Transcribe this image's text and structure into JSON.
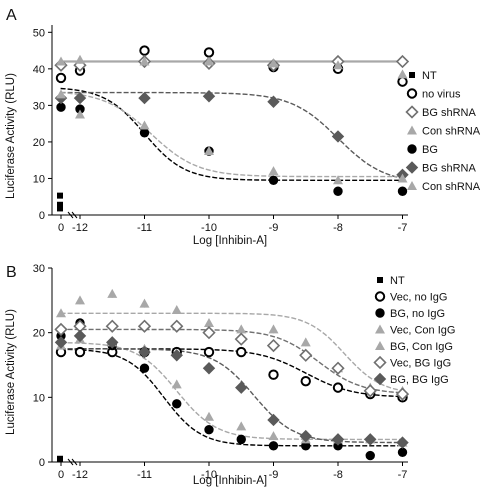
{
  "chart_data": [
    {
      "panel": "A",
      "type": "scatter",
      "xlabel": "Log [Inhibin-A]",
      "ylabel": "Luciferase Activity (RLU)",
      "ylim": [
        0,
        52
      ],
      "yticks": [
        0,
        10,
        20,
        30,
        40,
        50
      ],
      "xticks": [
        "0",
        "-12",
        "-11",
        "-10",
        "-9",
        "-8",
        "-7"
      ],
      "x": [
        -12,
        -11,
        -10,
        -9,
        -8,
        -7
      ],
      "series": [
        {
          "name": "NT",
          "marker": "square",
          "color": "#000000",
          "values_at_zero": [
            5.3,
            2.8,
            1.8
          ]
        },
        {
          "name": "no virus",
          "marker": "circle-open",
          "color": "#000000",
          "zero": 37.5,
          "values": [
            39.5,
            45.0,
            44.5,
            40.5,
            40.0,
            36.5
          ],
          "fit": "flat",
          "fit_level": 42
        },
        {
          "name": "BG shRNA",
          "marker": "diamond-open",
          "color": "#707070",
          "zero": 41.0,
          "values": [
            41.0,
            42.0,
            41.5,
            41.0,
            42.0,
            42.0
          ],
          "fit": "flat",
          "fit_level": 42
        },
        {
          "name": "Con shRNA",
          "marker": "triangle",
          "color": "#a8a8a8",
          "zero": 42.0,
          "values": [
            42.5,
            42.0,
            42.0,
            41.5,
            41.0,
            38.5
          ],
          "fit": "flat",
          "fit_level": 42
        },
        {
          "name": "BG",
          "marker": "circle",
          "color": "#000000",
          "zero": 29.5,
          "values": [
            29.0,
            22.5,
            17.5,
            9.5,
            6.5,
            6.5
          ],
          "fit": "sigmoid",
          "fit_top": 35,
          "fit_bottom": 9.5,
          "fit_ec50": -11.0,
          "fit_hill": 1.4
        },
        {
          "name": "BG shRNA",
          "marker": "diamond",
          "color": "#5a5a5a",
          "zero": 32.0,
          "values": [
            32.0,
            32.0,
            32.5,
            31.0,
            21.5,
            11.0
          ],
          "fit": "sigmoid",
          "fit_top": 33.5,
          "fit_bottom": 8.5,
          "fit_ec50": -8.0,
          "fit_hill": 1.2
        },
        {
          "name": "Con shRNA",
          "marker": "triangle",
          "color": "#a8a8a8",
          "zero": 33.0,
          "values": [
            27.5,
            24.5,
            17.5,
            12.0,
            9.5,
            10.0
          ],
          "fit": "sigmoid",
          "fit_top": 34,
          "fit_bottom": 10.5,
          "fit_ec50": -10.9,
          "fit_hill": 1.2
        }
      ]
    },
    {
      "panel": "B",
      "type": "scatter",
      "xlabel": "Log [Inhibin-A]",
      "ylabel": "Luciferase Activity (RLU)",
      "ylim": [
        0,
        30
      ],
      "yticks": [
        0,
        10,
        20,
        30
      ],
      "xticks": [
        "0",
        "-12",
        "-11",
        "-10",
        "-9",
        "-8",
        "-7"
      ],
      "x": [
        -12,
        -11.5,
        -11,
        -10.5,
        -10,
        -9.5,
        -9,
        -8.5,
        -8,
        -7.5,
        -7
      ],
      "series": [
        {
          "name": "NT",
          "marker": "square",
          "color": "#000000",
          "values_at_zero": [
            0.5
          ]
        },
        {
          "name": "Vec, no IgG",
          "marker": "circle-open",
          "color": "#000000",
          "zero": 17.0,
          "values": [
            17.0,
            17.0,
            17.0,
            17.0,
            17.0,
            17.0,
            13.5,
            12.5,
            11.5,
            10.5,
            10.0
          ],
          "fit": "sigmoid",
          "fit_top": 17.5,
          "fit_bottom": 10.0,
          "fit_ec50": -8.5,
          "fit_hill": 1.2
        },
        {
          "name": "BG, no IgG",
          "marker": "circle",
          "color": "#000000",
          "zero": 19.5,
          "values": [
            21.5,
            18.0,
            14.5,
            9.0,
            5.0,
            3.5,
            2.5,
            2.5,
            2.5,
            1.0,
            1.5
          ],
          "fit": "sigmoid",
          "fit_top": 17.5,
          "fit_bottom": 2.5,
          "fit_ec50": -10.7,
          "fit_hill": 1.5
        },
        {
          "name": "Vec, Con IgG",
          "marker": "triangle",
          "color": "#a8a8a8",
          "zero": 23.0,
          "values": [
            25.0,
            26.0,
            24.5,
            23.5,
            21.5,
            20.5,
            20.5,
            18.5,
            14.5,
            11.5,
            11.0
          ],
          "fit": "sigmoid",
          "fit_top": 23.0,
          "fit_bottom": 10.5,
          "fit_ec50": -7.9,
          "fit_hill": 1.5
        },
        {
          "name": "BG, Con IgG",
          "marker": "triangle",
          "color": "#a8a8a8",
          "zero": 18.0,
          "values": [
            19.0,
            18.5,
            17.5,
            12.0,
            7.0,
            5.5,
            4.0,
            3.5,
            3.5,
            3.5,
            3.0
          ],
          "fit": "sigmoid",
          "fit_top": 18.5,
          "fit_bottom": 3.5,
          "fit_ec50": -10.5,
          "fit_hill": 1.4
        },
        {
          "name": "Vec, BG IgG",
          "marker": "diamond-open",
          "color": "#707070",
          "zero": 20.5,
          "values": [
            21.0,
            21.0,
            21.0,
            21.0,
            20.0,
            19.0,
            18.0,
            16.5,
            14.5,
            11.0,
            10.5
          ],
          "fit": "sigmoid",
          "fit_top": 20.5,
          "fit_bottom": 10.5,
          "fit_ec50": -8.3,
          "fit_hill": 1.3
        },
        {
          "name": "BG, BG IgG",
          "marker": "diamond",
          "color": "#5a5a5a",
          "zero": 18.5,
          "values": [
            19.5,
            18.5,
            17.0,
            16.5,
            14.5,
            11.5,
            6.5,
            4.0,
            3.5,
            3.5,
            3.0
          ],
          "fit": "sigmoid",
          "fit_top": 17.5,
          "fit_bottom": 3.0,
          "fit_ec50": -9.3,
          "fit_hill": 1.4
        }
      ]
    }
  ],
  "fits_style": {
    "dashed_colors": [
      "#000000",
      "#5a5a5a",
      "#a8a8a8"
    ]
  }
}
